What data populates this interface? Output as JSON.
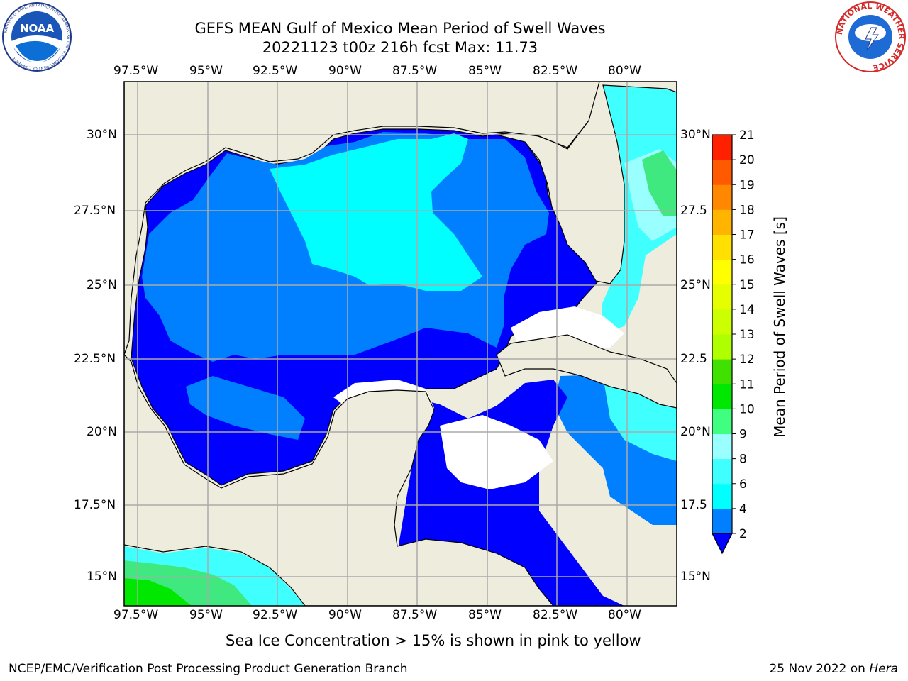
{
  "header": {
    "title_line1": "GEFS MEAN Gulf of Mexico Mean Period of Swell Waves",
    "title_line2": "20221123 t00z 216h fcst   Max: 11.73"
  },
  "logos": {
    "left": "NOAA",
    "left_ring": "NATIONAL OCEANIC AND ATMOSPHERIC ADMINISTRATION · U.S. DEPARTMENT OF COMMERCE",
    "right_ring": "NATIONAL WEATHER SERVICE"
  },
  "map": {
    "lon_labels": [
      "97.5°W",
      "95°W",
      "92.5°W",
      "90°W",
      "87.5°W",
      "85°W",
      "82.5°W",
      "80°W"
    ],
    "lat_labels_left": [
      "30°N",
      "27.5°N",
      "25°N",
      "22.5°N",
      "20°N",
      "17.5°N",
      "15°N"
    ],
    "lat_labels_right": [
      "30°N",
      "27.5",
      "25°N",
      "22.5",
      "20°N",
      "17.5",
      "15°N"
    ]
  },
  "chart_data": {
    "type": "heatmap",
    "title": "GEFS MEAN Gulf of Mexico Mean Period of Swell Waves",
    "subtitle": "20221123 t00z 216h fcst   Max: 11.73",
    "max": 11.73,
    "lon_range": [
      -98,
      -78.2
    ],
    "lat_range": [
      14.0,
      32.0
    ],
    "colorbar": {
      "label": "Mean Period of Swell Waves [s]",
      "ticks": [
        2,
        4,
        6,
        8,
        9,
        10,
        11,
        12,
        13,
        14,
        15,
        16,
        17,
        18,
        19,
        20,
        21
      ],
      "colors": [
        "#0000ff",
        "#0080ff",
        "#00ffff",
        "#40ffff",
        "#99ffff",
        "#40ff80",
        "#00e800",
        "#40e000",
        "#b0ff00",
        "#ccff00",
        "#e6ff00",
        "#ffff00",
        "#ffe000",
        "#ffb400",
        "#ff8800",
        "#ff5a00",
        "#ff2000",
        "#ff0000"
      ],
      "extend": "min"
    },
    "regions": [
      {
        "area": "western and southern Gulf",
        "period_s": "< 2"
      },
      {
        "area": "central and northern Gulf",
        "period_s": "2-4"
      },
      {
        "area": "north-central Gulf",
        "period_s": "4-6"
      },
      {
        "area": "Atlantic off east Florida",
        "period_s": "4-9"
      },
      {
        "area": "Pacific off Central America",
        "period_s": "6-11"
      }
    ]
  },
  "footer": {
    "note": "Sea Ice Concentration > 15% is shown in pink to yellow",
    "credit": "NCEP/EMC/Verification Post Processing Product Generation Branch",
    "date": "25 Nov 2022 on",
    "machine": "Hera"
  }
}
